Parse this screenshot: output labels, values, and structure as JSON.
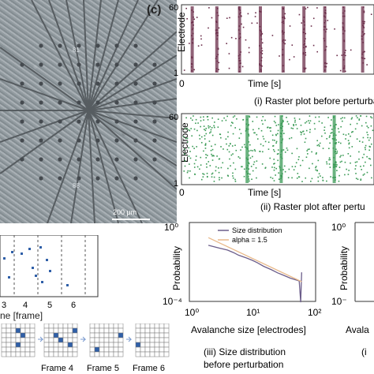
{
  "panel_c_letter": "(c)",
  "micrograph": {
    "scale_label": "200 μm",
    "electrode_labels": [
      "81",
      "88"
    ]
  },
  "frame_panel": {
    "x_ticks": [
      "3",
      "4",
      "5",
      "6"
    ],
    "xlabel_fragment": "ne [frame]",
    "frame_labels": [
      "Frame 4",
      "Frame 5",
      "Frame 6"
    ]
  },
  "colors": {
    "raster_before": "#6b2d4a",
    "raster_after": "#3a9a55",
    "size_dist": "#6b5d8a",
    "alpha_line": "#e8b98a",
    "frame_cell": "#2f5fa8"
  },
  "chart_data": [
    {
      "type": "scatter",
      "title": "(i) Raster plot before perturba",
      "xlabel": "Time [s]",
      "ylabel": "Electrode",
      "y_ticks": [
        "60",
        "1"
      ],
      "x_ticks": [
        "0"
      ],
      "ylim": [
        1,
        60
      ],
      "bursts_frac": [
        0.04,
        0.17,
        0.29,
        0.4,
        0.52,
        0.63,
        0.74,
        0.84,
        0.94
      ],
      "color": "#6b2d4a"
    },
    {
      "type": "scatter",
      "title": "(ii) Raster plot after pertu",
      "xlabel": "Time [s]",
      "ylabel": "Electrode",
      "y_ticks": [
        "60",
        "1"
      ],
      "x_ticks": [
        "0"
      ],
      "ylim": [
        1,
        60
      ],
      "bursts_frac": [
        0.33,
        0.51,
        0.79
      ],
      "color": "#3a9a55"
    },
    {
      "type": "line",
      "title": "(iii) Size distribution",
      "subtitle": "before perturbation",
      "xlabel": "Avalanche size [electrodes]",
      "ylabel": "Probability",
      "xscale": "log",
      "yscale": "log",
      "xlim": [
        1,
        100
      ],
      "ylim": [
        0.0001,
        1
      ],
      "x_tick_labels": [
        "10⁰",
        "10¹",
        "10²"
      ],
      "y_tick_labels": [
        "10⁰",
        "10⁻⁴"
      ],
      "series": [
        {
          "name": "Size distribution",
          "x": [
            2,
            3,
            4,
            5,
            6,
            8,
            10,
            12,
            15,
            20,
            25,
            30,
            40,
            50,
            55,
            58,
            60
          ],
          "y": [
            0.07,
            0.05,
            0.04,
            0.03,
            0.022,
            0.016,
            0.012,
            0.009,
            0.006,
            0.004,
            0.0028,
            0.0022,
            0.0015,
            0.0012,
            0.0011,
            9e-05,
            0.003
          ]
        },
        {
          "name": "alpha = 1.5",
          "x": [
            2,
            60
          ],
          "y": [
            0.17,
            0.001
          ]
        }
      ]
    }
  ],
  "partial_right": {
    "y_tick_top": "10⁰",
    "y_tick_bottom": "10⁻",
    "ylabel": "Probability",
    "xlabel_fragment": "Avala",
    "title_fragment": "(i"
  }
}
